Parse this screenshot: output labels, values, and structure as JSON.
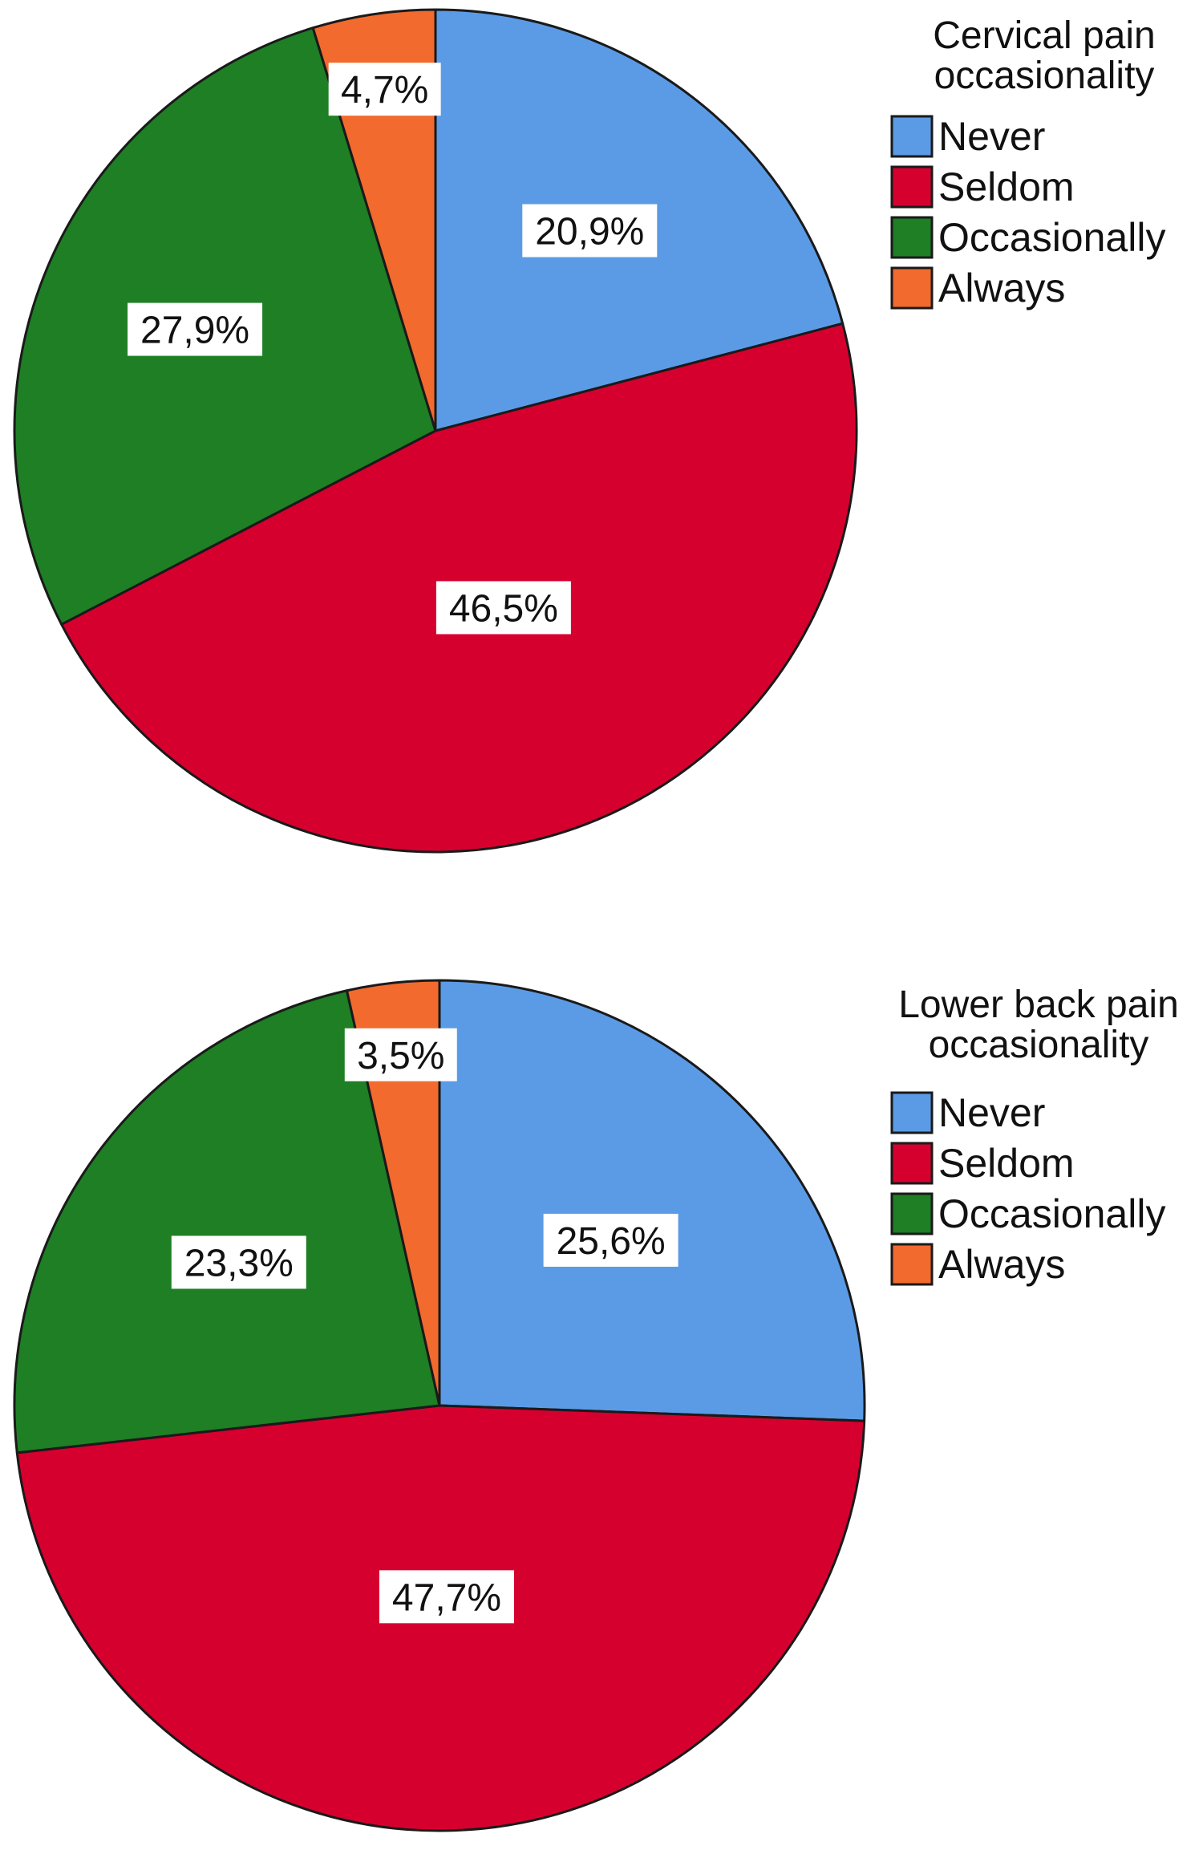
{
  "chart_data": [
    {
      "type": "pie",
      "legend_title": [
        "Cervical pain",
        "occasionality"
      ],
      "legend_position": "top-right",
      "categories": [
        "Never",
        "Seldom",
        "Occasionally",
        "Always"
      ],
      "values": [
        20.9,
        46.5,
        27.9,
        4.7
      ],
      "data_labels": [
        "20,9%",
        "46,5%",
        "27,9%",
        "4,7%"
      ],
      "colors": [
        "#5b9be6",
        "#d6002f",
        "#1e7f25",
        "#f26a2e"
      ]
    },
    {
      "type": "pie",
      "legend_title": [
        "Lower back pain",
        "occasionality"
      ],
      "legend_position": "top-right",
      "categories": [
        "Never",
        "Seldom",
        "Occasionally",
        "Always"
      ],
      "values": [
        25.6,
        47.7,
        23.3,
        3.5
      ],
      "data_labels": [
        "25,6%",
        "47,7%",
        "23,3%",
        "3,5%"
      ],
      "colors": [
        "#5b9be6",
        "#d6002f",
        "#1e7f25",
        "#f26a2e"
      ]
    }
  ]
}
